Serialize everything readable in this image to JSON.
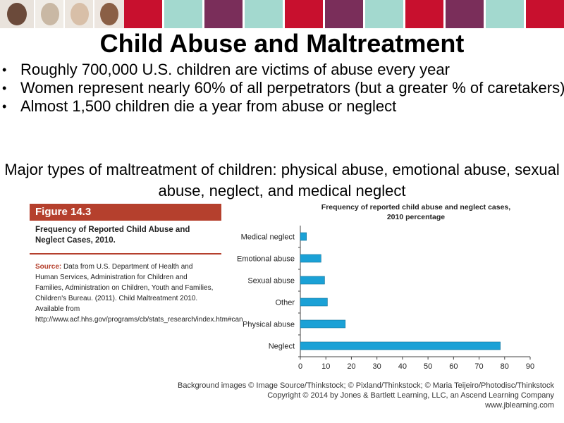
{
  "slide": {
    "title": "Child Abuse and Maltreatment",
    "bullets": [
      "Roughly 700,000 U.S. children are victims of abuse every year",
      "Women represent nearly 60% of all perpetrators (but a greater % of caretakers)",
      "Almost 1,500 children die a year from abuse or neglect"
    ],
    "subtext": "Major types of maltreatment of children: physical abuse, emotional abuse, sexual abuse, neglect, and medical neglect"
  },
  "banner": {
    "colors": [
      "#c8102e",
      "#a3d9cf",
      "#7a2e5a",
      "#a3d9cf",
      "#c8102e",
      "#7a2e5a",
      "#a3d9cf",
      "#c8102e",
      "#7a2e5a",
      "#a3d9cf",
      "#c8102e"
    ]
  },
  "figure": {
    "label": "Figure 14.3",
    "caption": "Frequency of Reported Child Abuse and Neglect Cases, 2010.",
    "source_label": "Source:",
    "source_text": "Data from U.S. Department of Health and Human Services, Administration for Children and Families, Administration on Children, Youth and Families, Children's Bureau. (2011). Child Maltreatment 2010. Available from http://www.acf.hhs.gov/programs/cb/stats_research/index.htm#can",
    "accent_color": "#b5402d"
  },
  "chart_data": {
    "type": "bar",
    "orientation": "horizontal",
    "title": "Frequency of reported child abuse and neglect cases, 2010 percentage",
    "categories": [
      "Medical neglect",
      "Emotional abuse",
      "Sexual abuse",
      "Other",
      "Physical abuse",
      "Neglect"
    ],
    "values": [
      2.4,
      8.1,
      9.5,
      10.6,
      17.6,
      78.3
    ],
    "xlim": [
      0,
      90
    ],
    "xticks": [
      0,
      10,
      20,
      30,
      40,
      50,
      60,
      70,
      80,
      90
    ],
    "bar_color": "#1ba1d6",
    "grid": false
  },
  "credit": {
    "line1": "Background images © Image Source/Thinkstock; © Pixland/Thinkstock; © Maria Teijeiro/Photodisc/Thinkstock",
    "line2": "Copyright © 2014 by Jones & Bartlett Learning, LLC, an Ascend Learning Company",
    "line3": "www.jblearning.com"
  }
}
